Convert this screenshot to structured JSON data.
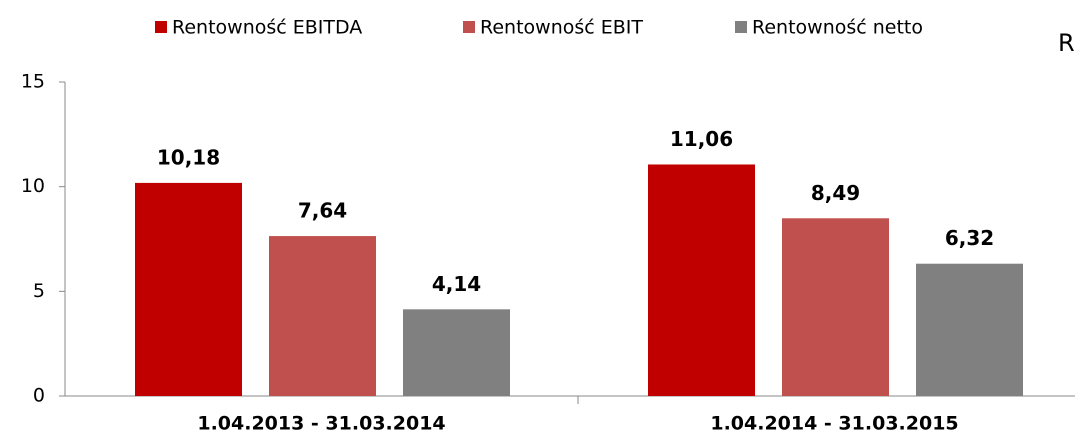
{
  "chart_data": {
    "type": "bar",
    "annotation": "R",
    "categories": [
      "1.04.2013 - 31.03.2014",
      "1.04.2014 - 31.03.2015"
    ],
    "series": [
      {
        "name": "Rentowność EBITDA",
        "color": "#c00000",
        "values": [
          10.18,
          11.06
        ],
        "value_labels": [
          "10,18",
          "11,06"
        ]
      },
      {
        "name": "Rentowność EBIT",
        "color": "#c0504d",
        "values": [
          7.64,
          8.49
        ],
        "value_labels": [
          "7,64",
          "8,49"
        ]
      },
      {
        "name": "Rentowność netto",
        "color": "#808080",
        "values": [
          4.14,
          6.32
        ],
        "value_labels": [
          "4,14",
          "6,32"
        ]
      }
    ],
    "ylim": [
      0,
      15
    ],
    "yticks": [
      0,
      5,
      10,
      15
    ],
    "legend": "top"
  }
}
